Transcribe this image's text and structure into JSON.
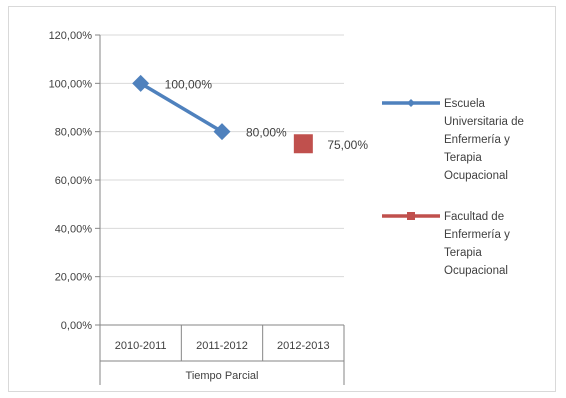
{
  "chart_data": {
    "type": "line",
    "categories": [
      "2010-2011",
      "2011-2012",
      "2012-2013"
    ],
    "group_label": "Tiempo Parcial",
    "ylim": [
      0,
      1.2
    ],
    "y_ticks": [
      "0,00%",
      "20,00%",
      "40,00%",
      "60,00%",
      "80,00%",
      "100,00%",
      "120,00%"
    ],
    "grid": true,
    "legend_position": "right",
    "series": [
      {
        "name": "Escuela Universitaria de Enfermería y Terapia Ocupacional",
        "legend_lines": [
          "Escuela",
          "Universitaria de",
          "Enfermería y",
          "Terapia",
          "Ocupacional"
        ],
        "color": "#4f81bd",
        "marker": "diamond",
        "values": [
          1.0,
          0.8,
          null
        ],
        "labels": [
          "100,00%",
          "80,00%",
          null
        ]
      },
      {
        "name": "Facultad de Enfermería y Terapia Ocupacional",
        "legend_lines": [
          "Facultad de",
          "Enfermería y",
          "Terapia",
          "Ocupacional"
        ],
        "color": "#c0504d",
        "marker": "square",
        "values": [
          null,
          null,
          0.75
        ],
        "labels": [
          null,
          null,
          "75,00%"
        ]
      }
    ]
  }
}
